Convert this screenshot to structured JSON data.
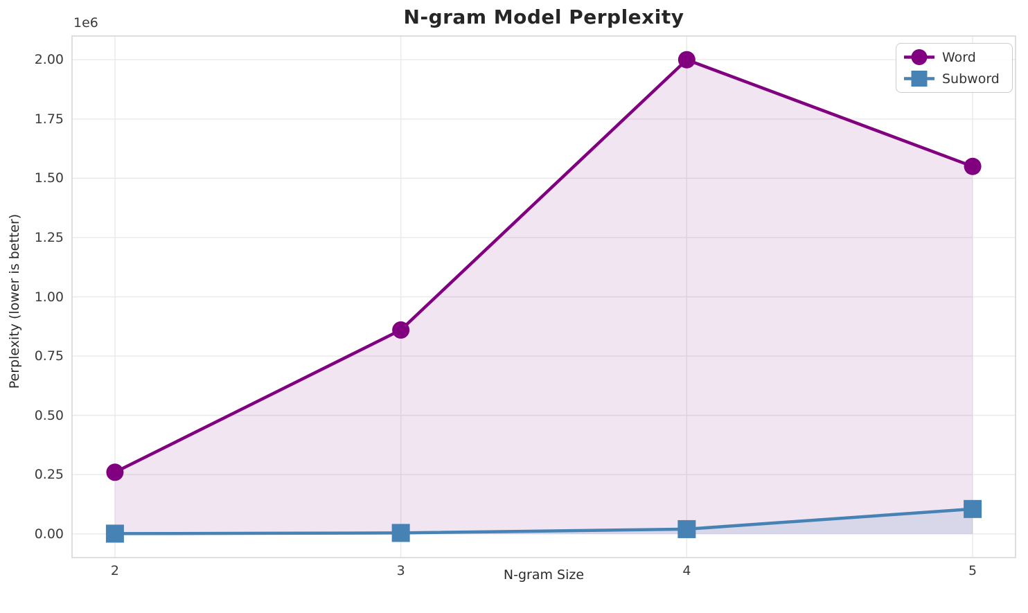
{
  "chart_data": {
    "type": "line",
    "title": "N-gram Model Perplexity",
    "xlabel": "N-gram Size",
    "ylabel": "Perplexity (lower is better)",
    "y_offset_label": "1e6",
    "x": [
      2,
      3,
      4,
      5
    ],
    "series": [
      {
        "name": "Word",
        "marker": "circle",
        "color": "#800080",
        "fill_alpha": 0.1,
        "values": [
          260000,
          860000,
          2000000,
          1550000
        ]
      },
      {
        "name": "Subword",
        "marker": "square",
        "color": "#4682B4",
        "fill_alpha": 0.15,
        "values": [
          1000,
          4000,
          20000,
          105000
        ]
      }
    ],
    "fill_to_zero": true,
    "x_ticks": [
      {
        "value": 2,
        "label": "2"
      },
      {
        "value": 3,
        "label": "3"
      },
      {
        "value": 4,
        "label": "4"
      },
      {
        "value": 5,
        "label": "5"
      }
    ],
    "y_ticks": [
      {
        "value": 0,
        "label": "0.00"
      },
      {
        "value": 250000,
        "label": "0.25"
      },
      {
        "value": 500000,
        "label": "0.50"
      },
      {
        "value": 750000,
        "label": "0.75"
      },
      {
        "value": 1000000,
        "label": "1.00"
      },
      {
        "value": 1250000,
        "label": "1.25"
      },
      {
        "value": 1500000,
        "label": "1.50"
      },
      {
        "value": 1750000,
        "label": "1.75"
      },
      {
        "value": 2000000,
        "label": "2.00"
      }
    ],
    "xlim": [
      1.85,
      5.15
    ],
    "ylim": [
      -100000,
      2100000
    ],
    "grid": true,
    "legend_position": "upper right",
    "colors": {
      "grid": "#e9e9ec",
      "border": "#d6d6d9",
      "title_text": "#262626",
      "tick_text": "#3a3a3a"
    }
  }
}
